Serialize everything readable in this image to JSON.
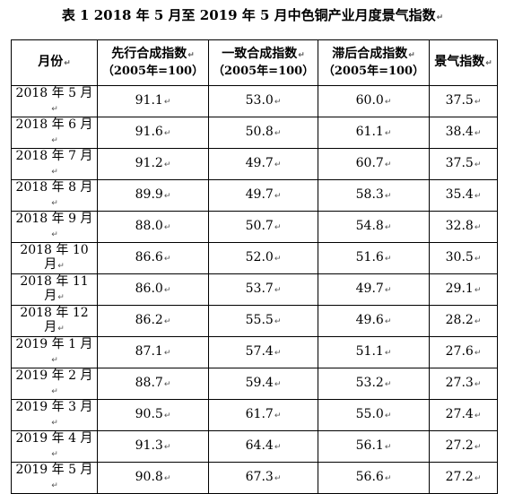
{
  "title": "表 1   2018 年 5 月至 2019 年 5 月中色铜产业月度景气指数",
  "columns": [
    {
      "label": "月份",
      "sub": ""
    },
    {
      "label": "先行合成指数",
      "sub": "（2005年=100）"
    },
    {
      "label": "一致合成指数",
      "sub": "（2005年=100）"
    },
    {
      "label": "滞后合成指数",
      "sub": "（2005年=100）"
    },
    {
      "label": "景气指数",
      "sub": ""
    }
  ],
  "rows": [
    [
      "2018 年 5 月",
      "91.1",
      "53.0",
      "60.0",
      "37.5"
    ],
    [
      "2018 年 6 月",
      "91.6",
      "50.8",
      "61.1",
      "38.4"
    ],
    [
      "2018 年 7 月",
      "91.2",
      "49.7",
      "60.7",
      "37.5"
    ],
    [
      "2018 年 8 月",
      "89.9",
      "49.7",
      "58.3",
      "35.4"
    ],
    [
      "2018 年 9 月",
      "88.0",
      "50.7",
      "54.8",
      "32.8"
    ],
    [
      "2018 年 10 月",
      "86.6",
      "52.0",
      "51.6",
      "30.5"
    ],
    [
      "2018 年 11 月",
      "86.0",
      "53.7",
      "49.7",
      "29.1"
    ],
    [
      "2018 年 12 月",
      "86.2",
      "55.5",
      "49.6",
      "28.2"
    ],
    [
      "2019 年 1 月",
      "87.1",
      "57.4",
      "51.1",
      "27.6"
    ],
    [
      "2019 年 2 月",
      "88.7",
      "59.4",
      "53.2",
      "27.3"
    ],
    [
      "2019 年 3 月",
      "90.5",
      "61.7",
      "55.0",
      "27.4"
    ],
    [
      "2019 年 4 月",
      "91.3",
      "64.4",
      "56.1",
      "27.2"
    ],
    [
      "2019 年 5 月",
      "90.8",
      "67.3",
      "56.6",
      "27.2"
    ]
  ],
  "paragraph_mark": "↵"
}
